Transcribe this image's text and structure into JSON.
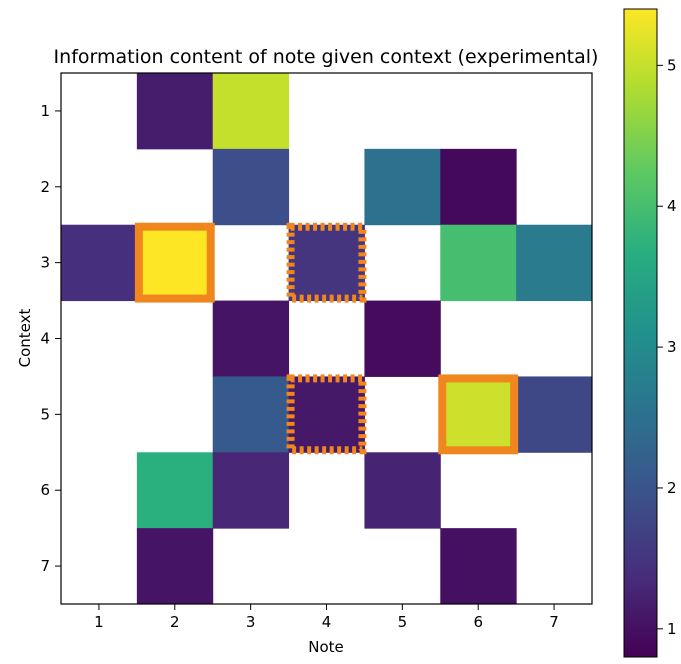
{
  "chart_data": {
    "type": "heatmap",
    "title": "Information content of note given context (experimental)",
    "xlabel": "Note",
    "ylabel": "Context",
    "x_categories": [
      "1",
      "2",
      "3",
      "4",
      "5",
      "6",
      "7"
    ],
    "y_categories": [
      "1",
      "2",
      "3",
      "4",
      "5",
      "6",
      "7"
    ],
    "colormap": "viridis",
    "color_range": [
      0.8,
      5.4
    ],
    "colorbar_ticks": [
      "1",
      "2",
      "3",
      "4",
      "5"
    ],
    "missing_value_color": "#ffffff",
    "values": [
      [
        null,
        1.15,
        5.0,
        null,
        null,
        null,
        null
      ],
      [
        null,
        null,
        1.9,
        null,
        2.5,
        0.9,
        null
      ],
      [
        1.4,
        5.4,
        null,
        1.5,
        null,
        4.0,
        2.7
      ],
      [
        null,
        null,
        1.05,
        null,
        0.95,
        null,
        null
      ],
      [
        null,
        null,
        2.1,
        1.1,
        null,
        5.05,
        1.8
      ],
      [
        null,
        3.7,
        1.3,
        null,
        1.25,
        null,
        null
      ],
      [
        null,
        1.05,
        null,
        null,
        null,
        1.0,
        null
      ]
    ],
    "highlights": [
      {
        "note": "2",
        "context": "3",
        "style": "solid",
        "color": "#f0871e"
      },
      {
        "note": "6",
        "context": "5",
        "style": "solid",
        "color": "#f0871e"
      },
      {
        "note": "4",
        "context": "3",
        "style": "dotted",
        "color": "#f0871e"
      },
      {
        "note": "4",
        "context": "5",
        "style": "dotted",
        "color": "#f0871e"
      }
    ]
  }
}
